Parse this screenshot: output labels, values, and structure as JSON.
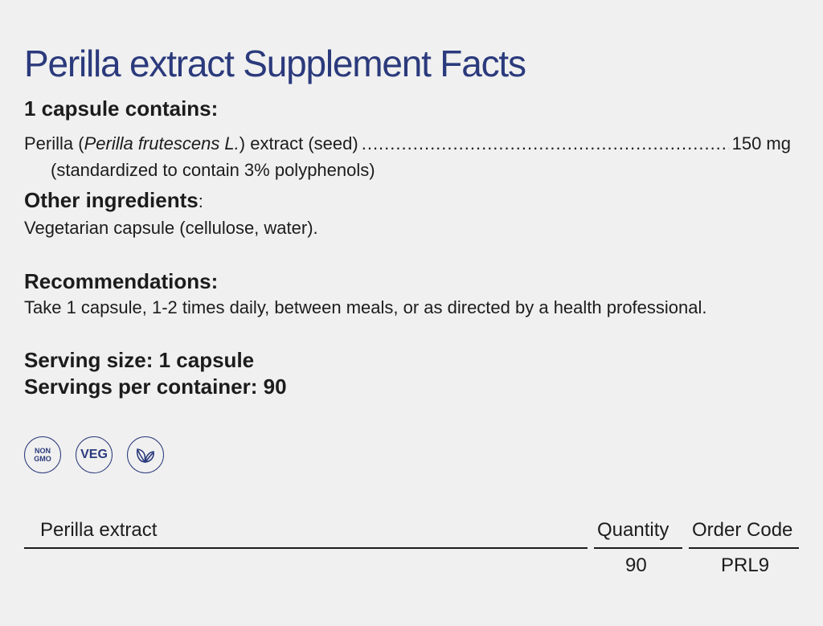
{
  "title": "Perilla extract Supplement Facts",
  "contains_heading": "1 capsule contains:",
  "ingredient": {
    "name_pre": "Perilla (",
    "name_latin": "Perilla frutescens L.",
    "name_post": ") extract (seed)",
    "amount": "150 mg",
    "note": "(standardized to contain 3% polyphenols)"
  },
  "other": {
    "heading": "Other ingredients",
    "colon": ":",
    "text": "Vegetarian capsule (cellulose, water)."
  },
  "recommendations": {
    "heading": "Recommendations:",
    "text": "Take 1 capsule, 1-2 times daily, between meals, or as directed by a health professional."
  },
  "serving_size": "Serving size: 1 capsule",
  "servings_per_container": "Servings per container: 90",
  "badges": {
    "non_gmo_line1": "NON",
    "non_gmo_line2": "GMO",
    "veg": "VEG",
    "accent_color": "#2b3a7c"
  },
  "table": {
    "product_header": "Perilla extract",
    "quantity_header": "Quantity",
    "order_code_header": "Order Code",
    "rows": [
      {
        "quantity": "90",
        "order_code": "PRL9"
      }
    ]
  }
}
